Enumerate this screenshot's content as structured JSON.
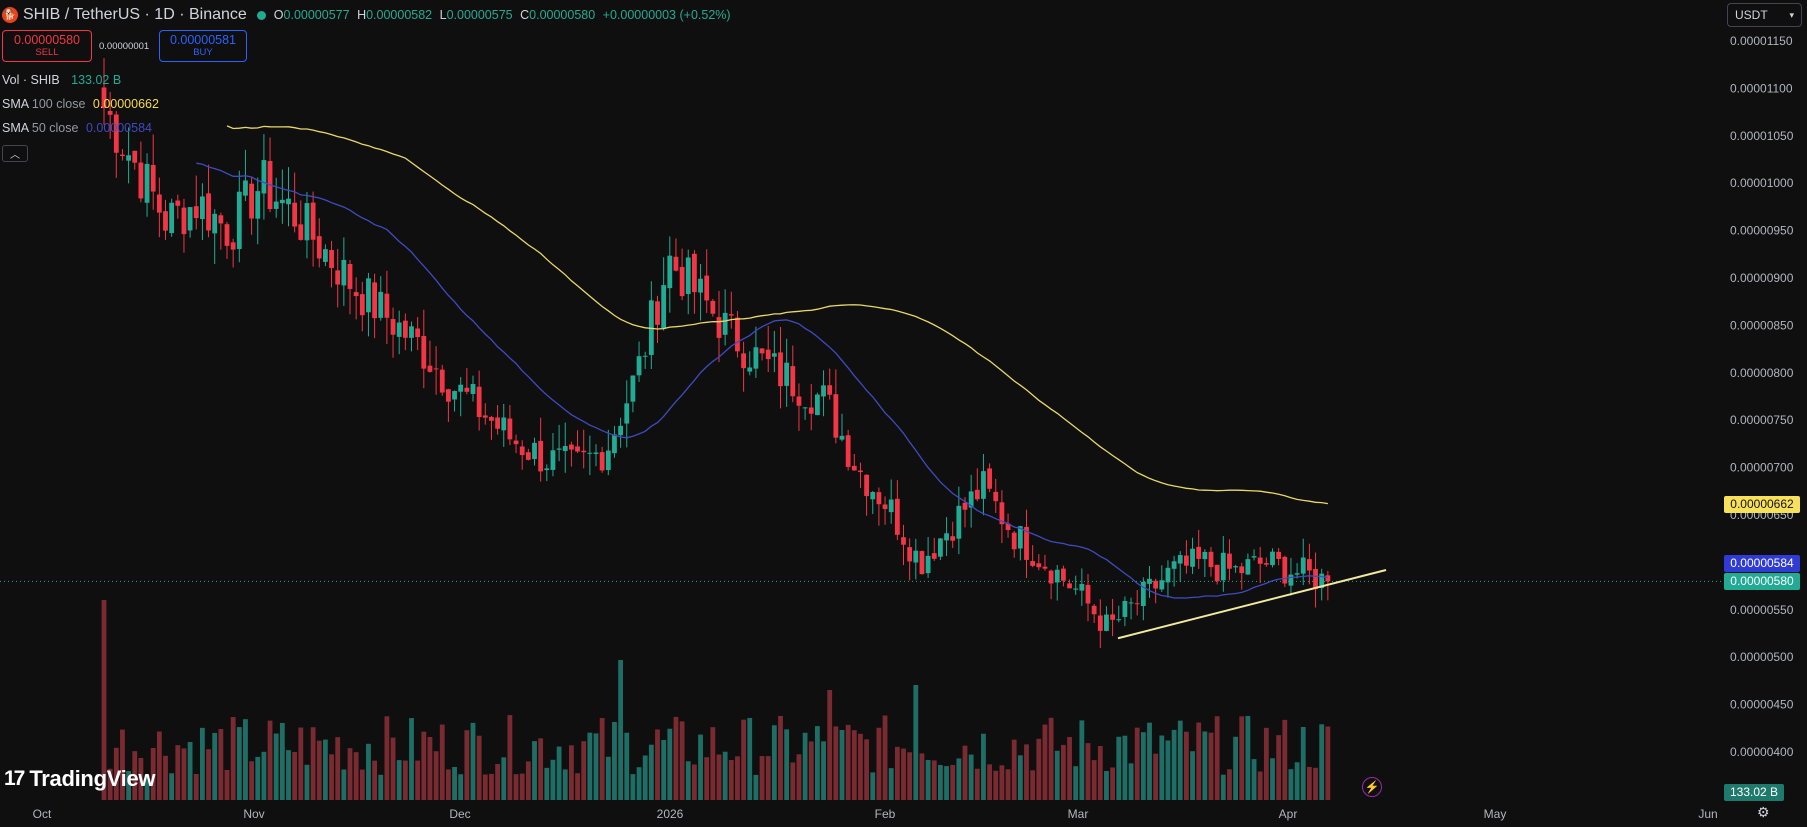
{
  "header": {
    "title": "SHIB / TetherUS · 1D · Binance",
    "ohlc": {
      "o_label": "O",
      "o": "0.00000577",
      "h_label": "H",
      "h": "0.00000582",
      "l_label": "L",
      "l": "0.00000575",
      "c_label": "C",
      "c": "0.00000580",
      "change": "+0.00000003 (+0.52%)"
    }
  },
  "trade": {
    "sell_price": "0.00000580",
    "sell_label": "SELL",
    "spread": "0.00000001",
    "buy_price": "0.00000581",
    "buy_label": "BUY"
  },
  "indicators": {
    "vol_name": "Vol · SHIB",
    "vol_value": "133.02 B",
    "sma100_name": "SMA",
    "sma100_sub": "100 close",
    "sma100_value": "0.00000662",
    "sma50_name": "SMA",
    "sma50_sub": "50 close",
    "sma50_value": "0.00000584"
  },
  "currency": {
    "label": "USDT",
    "chevron": "chevron-down-icon"
  },
  "price_tags": {
    "sma100": "0.00000662",
    "sma50": "0.00000584",
    "last": "0.00000580",
    "volume": "133.02 B"
  },
  "logo": {
    "text": "TradingView"
  },
  "colors": {
    "background": "#0f0f0f",
    "up": "#22ab94",
    "down": "#f23645",
    "sma100": "#e8d86a",
    "sma50": "#3f4bbf",
    "trendline": "#f1e9a0",
    "vol_up": "#1f6e66",
    "vol_down": "#7a2b31"
  },
  "chart_data": {
    "type": "candlestick",
    "y_ticks": [
      "0.00001150",
      "0.00001100",
      "0.00001050",
      "0.00001000",
      "0.00000950",
      "0.00000900",
      "0.00000850",
      "0.00000800",
      "0.00000750",
      "0.00000700",
      "0.00000650",
      "0.00000600",
      "0.00000550",
      "0.00000500",
      "0.00000450",
      "0.00000400"
    ],
    "x_ticks": [
      "Oct",
      "Nov",
      "Dec",
      "2026",
      "Feb",
      "Mar",
      "Apr",
      "May",
      "Jun"
    ],
    "ohlc_approx": {
      "start": "late Sep",
      "closes": [
        1.08e-05,
        1.02e-05,
        9.6e-06,
        9.8e-06,
        9.5e-06,
        1e-05,
        9.7e-06,
        9.3e-06,
        8.9e-06,
        8.6e-06,
        8.3e-06,
        7.9e-06,
        7.6e-06,
        7.3e-06,
        7.1e-06,
        7e-06,
        7.2e-06,
        8e-06,
        9.2e-06,
        8.8e-06,
        8.4e-06,
        8.1e-06,
        7.9e-06,
        7.7e-06,
        7e-06,
        6.6e-06,
        6e-06,
        6.4e-06,
        6.8e-06,
        6.3e-06,
        6e-06,
        5.7e-06,
        5.3e-06,
        5.6e-06,
        5.9e-06,
        6e-06,
        5.9e-06,
        6e-06,
        5.9e-06,
        5.8e-06
      ],
      "sma100_end": 6.62e-06,
      "sma50_end": 5.84e-06
    },
    "trendline": {
      "from": 5.2e-06,
      "to": 5.92e-06
    }
  }
}
